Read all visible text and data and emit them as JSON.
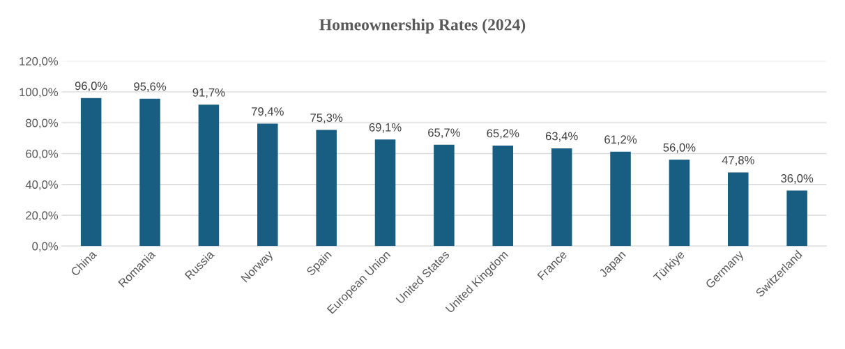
{
  "chart_data": {
    "type": "bar",
    "title": "Homeownership Rates (2024)",
    "categories": [
      "China",
      "Romania",
      "Russia",
      "Norway",
      "Spain",
      "European Union",
      "United States",
      "United Kingdom",
      "France",
      "Japan",
      "Türkiye",
      "Germany",
      "Switzerland"
    ],
    "values": [
      96.0,
      95.6,
      91.7,
      79.4,
      75.3,
      69.1,
      65.7,
      65.2,
      63.4,
      61.2,
      56.0,
      47.8,
      36.0
    ],
    "value_labels": [
      "96,0%",
      "95,6%",
      "91,7%",
      "79,4%",
      "75,3%",
      "69,1%",
      "65,7%",
      "65,2%",
      "63,4%",
      "61,2%",
      "56,0%",
      "47,8%",
      "36,0%"
    ],
    "color": "#175e82",
    "ylim": [
      0,
      120
    ],
    "yticks": [
      {
        "value": 0,
        "label": "0,0%"
      },
      {
        "value": 20,
        "label": "20,0%"
      },
      {
        "value": 40,
        "label": "40,0%"
      },
      {
        "value": 60,
        "label": "60,0%"
      },
      {
        "value": 80,
        "label": "80,0%"
      },
      {
        "value": 100,
        "label": "100,0%"
      },
      {
        "value": 120,
        "label": "120,0%"
      }
    ],
    "grid": "y",
    "legend": false
  }
}
